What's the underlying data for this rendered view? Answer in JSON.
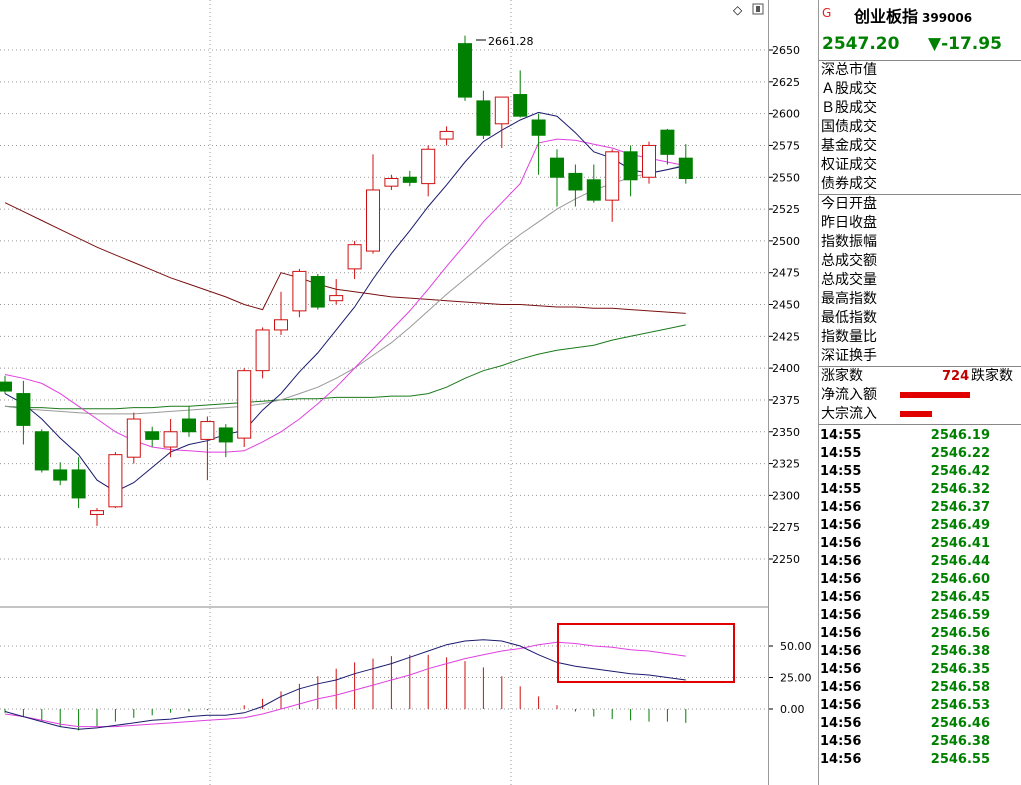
{
  "security": {
    "flag": "G",
    "name": "创业板指",
    "code": "399006",
    "price": "2547.20",
    "change": "▼-17.95"
  },
  "chart_data": {
    "type": "candlestick",
    "price_axis_ticks": [
      "2650",
      "2625",
      "2600",
      "2575",
      "2550",
      "2525",
      "2500",
      "2475",
      "2450",
      "2425",
      "2400",
      "2375",
      "2350",
      "2325",
      "2300",
      "2275",
      "2250"
    ],
    "indicator_axis_ticks": [
      "50.00",
      "25.00",
      "0.00"
    ],
    "high_marker_label": "2661.28",
    "candles": [
      {
        "o": 2389,
        "h": 2394,
        "l": 2380,
        "c": 2382
      },
      {
        "o": 2380,
        "h": 2390,
        "l": 2340,
        "c": 2355
      },
      {
        "o": 2350,
        "h": 2352,
        "l": 2318,
        "c": 2320
      },
      {
        "o": 2320,
        "h": 2326,
        "l": 2308,
        "c": 2312
      },
      {
        "o": 2320,
        "h": 2330,
        "l": 2290,
        "c": 2298
      },
      {
        "o": 2285,
        "h": 2290,
        "l": 2276,
        "c": 2288
      },
      {
        "o": 2291,
        "h": 2334,
        "l": 2290,
        "c": 2332
      },
      {
        "o": 2330,
        "h": 2365,
        "l": 2325,
        "c": 2360
      },
      {
        "o": 2350,
        "h": 2354,
        "l": 2338,
        "c": 2344
      },
      {
        "o": 2338,
        "h": 2360,
        "l": 2330,
        "c": 2350
      },
      {
        "o": 2360,
        "h": 2370,
        "l": 2346,
        "c": 2350
      },
      {
        "o": 2344,
        "h": 2362,
        "l": 2312,
        "c": 2358
      },
      {
        "o": 2353,
        "h": 2356,
        "l": 2330,
        "c": 2342
      },
      {
        "o": 2345,
        "h": 2400,
        "l": 2338,
        "c": 2398
      },
      {
        "o": 2398,
        "h": 2432,
        "l": 2392,
        "c": 2430
      },
      {
        "o": 2430,
        "h": 2460,
        "l": 2426,
        "c": 2438
      },
      {
        "o": 2445,
        "h": 2478,
        "l": 2440,
        "c": 2476
      },
      {
        "o": 2472,
        "h": 2474,
        "l": 2446,
        "c": 2448
      },
      {
        "o": 2453,
        "h": 2470,
        "l": 2450,
        "c": 2457
      },
      {
        "o": 2478,
        "h": 2500,
        "l": 2470,
        "c": 2497
      },
      {
        "o": 2492,
        "h": 2568,
        "l": 2490,
        "c": 2540
      },
      {
        "o": 2543,
        "h": 2552,
        "l": 2540,
        "c": 2549
      },
      {
        "o": 2550,
        "h": 2555,
        "l": 2543,
        "c": 2546
      },
      {
        "o": 2545,
        "h": 2575,
        "l": 2535,
        "c": 2572
      },
      {
        "o": 2580,
        "h": 2590,
        "l": 2575,
        "c": 2586
      },
      {
        "o": 2655,
        "h": 2661.28,
        "l": 2610,
        "c": 2613
      },
      {
        "o": 2610,
        "h": 2618,
        "l": 2580,
        "c": 2583
      },
      {
        "o": 2592,
        "h": 2613,
        "l": 2573,
        "c": 2613
      },
      {
        "o": 2615,
        "h": 2634,
        "l": 2597,
        "c": 2598
      },
      {
        "o": 2595,
        "h": 2600,
        "l": 2552,
        "c": 2583
      },
      {
        "o": 2565,
        "h": 2572,
        "l": 2527,
        "c": 2550
      },
      {
        "o": 2553,
        "h": 2560,
        "l": 2527,
        "c": 2540
      },
      {
        "o": 2548,
        "h": 2560,
        "l": 2530,
        "c": 2532
      },
      {
        "o": 2532,
        "h": 2572,
        "l": 2515,
        "c": 2570
      },
      {
        "o": 2570,
        "h": 2575,
        "l": 2535,
        "c": 2548
      },
      {
        "o": 2550,
        "h": 2578,
        "l": 2545,
        "c": 2575
      },
      {
        "o": 2587,
        "h": 2588,
        "l": 2560,
        "c": 2568
      },
      {
        "o": 2565,
        "h": 2576,
        "l": 2545,
        "c": 2549
      }
    ],
    "ma_navy": [
      2380,
      2372,
      2360,
      2345,
      2332,
      2312,
      2303,
      2310,
      2322,
      2334,
      2340,
      2343,
      2348,
      2351,
      2367,
      2380,
      2397,
      2412,
      2430,
      2448,
      2470,
      2490,
      2508,
      2527,
      2544,
      2562,
      2578,
      2587,
      2595,
      2601,
      2598,
      2585,
      2570,
      2565,
      2556,
      2553,
      2556,
      2559
    ],
    "ma_magenta": [
      2395,
      2392,
      2388,
      2380,
      2370,
      2360,
      2350,
      2343,
      2338,
      2336,
      2335,
      2334,
      2334,
      2335,
      2342,
      2350,
      2360,
      2372,
      2385,
      2400,
      2415,
      2430,
      2445,
      2462,
      2480,
      2497,
      2515,
      2530,
      2545,
      2577,
      2580,
      2579,
      2576,
      2573,
      2568,
      2565,
      2562,
      2559
    ],
    "ma_gray": [
      2370,
      2368,
      2367,
      2366,
      2365,
      2364,
      2364,
      2364,
      2365,
      2366,
      2367,
      2368,
      2369,
      2370,
      2372,
      2375,
      2380,
      2385,
      2392,
      2400,
      2410,
      2420,
      2432,
      2445,
      2458,
      2470,
      2482,
      2494,
      2505,
      2515,
      2525,
      2533,
      2540,
      2545,
      2550,
      2553,
      2556,
      2560
    ],
    "ma_darkred": [
      2530,
      2523,
      2516,
      2509,
      2502,
      2495,
      2489,
      2483,
      2477,
      2471,
      2466,
      2461,
      2456,
      2450,
      2446,
      2475,
      2471,
      2466,
      2462,
      2460,
      2458,
      2456,
      2455,
      2454,
      2453,
      2452,
      2451,
      2450,
      2450,
      2449,
      2448,
      2448,
      2447,
      2447,
      2446,
      2445,
      2444,
      2443
    ],
    "ma_green": [
      2370,
      2369,
      2369,
      2368,
      2368,
      2368,
      2368,
      2369,
      2369,
      2370,
      2370,
      2371,
      2372,
      2373,
      2374,
      2375,
      2376,
      2376,
      2377,
      2377,
      2377,
      2378,
      2378,
      2380,
      2385,
      2392,
      2398,
      2402,
      2407,
      2411,
      2414,
      2416,
      2418,
      2422,
      2425,
      2428,
      2431,
      2434
    ],
    "macd_bars": [
      -3,
      -6,
      -10,
      -14,
      -17,
      -14,
      -10,
      -7,
      -5,
      -3,
      -2,
      -1,
      0,
      3,
      8,
      14,
      20,
      26,
      32,
      37,
      40,
      42,
      43,
      43,
      41,
      38,
      33,
      26,
      18,
      10,
      3,
      -2,
      -6,
      -8,
      -9,
      -10,
      -10,
      -11
    ],
    "dif": [
      -2,
      -6,
      -10,
      -14,
      -16,
      -15,
      -13,
      -11,
      -9,
      -8,
      -6,
      -5,
      -5,
      -3,
      2,
      10,
      16,
      20,
      23,
      28,
      32,
      36,
      41,
      46,
      51,
      54,
      55,
      54,
      50,
      43,
      37,
      34,
      32,
      30,
      28,
      27,
      25,
      23
    ],
    "dea": [
      -4,
      -6,
      -9,
      -12,
      -14,
      -14,
      -14,
      -13,
      -12,
      -11,
      -10,
      -9,
      -8,
      -7,
      -4,
      0,
      4,
      8,
      11,
      15,
      19,
      23,
      27,
      32,
      36,
      40,
      43,
      46,
      48,
      51,
      53,
      52,
      50,
      49,
      47,
      46,
      44,
      42
    ]
  },
  "panel": {
    "labels_group1": [
      "深总市值",
      "Ａ股成交",
      "Ｂ股成交",
      "国债成交",
      "基金成交",
      "权证成交",
      "债券成交"
    ],
    "labels_group2": [
      "今日开盘",
      "昨日收盘",
      "指数振幅",
      "总成交额",
      "总成交量",
      "最高指数",
      "最低指数",
      "指数量比",
      "深证换手"
    ],
    "advance_label": "涨家数",
    "advance_count": "724",
    "decline_label": "跌家数",
    "netflow_label": "净流入额",
    "netflow_ratio": 0.7,
    "bigflow_label": "大宗流入",
    "bigflow_ratio": 0.32,
    "ticks": [
      {
        "t": "14:55",
        "v": "2546.19"
      },
      {
        "t": "14:55",
        "v": "2546.22"
      },
      {
        "t": "14:55",
        "v": "2546.42"
      },
      {
        "t": "14:55",
        "v": "2546.32"
      },
      {
        "t": "14:56",
        "v": "2546.37"
      },
      {
        "t": "14:56",
        "v": "2546.49"
      },
      {
        "t": "14:56",
        "v": "2546.41"
      },
      {
        "t": "14:56",
        "v": "2546.44"
      },
      {
        "t": "14:56",
        "v": "2546.60"
      },
      {
        "t": "14:56",
        "v": "2546.45"
      },
      {
        "t": "14:56",
        "v": "2546.59"
      },
      {
        "t": "14:56",
        "v": "2546.56"
      },
      {
        "t": "14:56",
        "v": "2546.38"
      },
      {
        "t": "14:56",
        "v": "2546.35"
      },
      {
        "t": "14:56",
        "v": "2546.58"
      },
      {
        "t": "14:56",
        "v": "2546.53"
      },
      {
        "t": "14:56",
        "v": "2546.46"
      },
      {
        "t": "14:56",
        "v": "2546.38"
      },
      {
        "t": "14:56",
        "v": "2546.55"
      }
    ]
  },
  "colors": {
    "up": "#d01010",
    "down": "#008000",
    "ma_navy": "#1a1a6e",
    "ma_magenta": "#e040e0",
    "ma_gray": "#999999",
    "ma_darkred": "#7a1010",
    "ma_green": "#1a7a1a",
    "highlight": "#e00000"
  }
}
